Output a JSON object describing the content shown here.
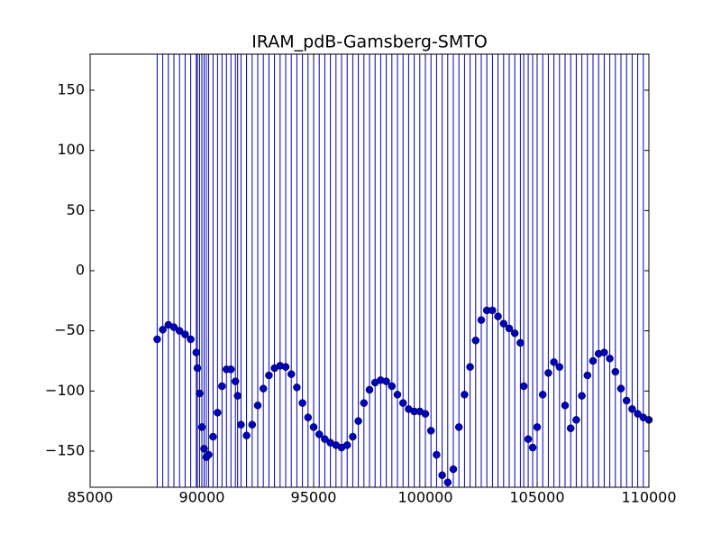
{
  "chart_data": {
    "type": "scatter",
    "title": "IRAM_pdB-Gamsberg-SMTO",
    "x": [
      88000,
      88250,
      88500,
      88750,
      89000,
      89250,
      89500,
      89750,
      89800,
      89900,
      90000,
      90100,
      90200,
      90300,
      90500,
      90700,
      90900,
      91100,
      91300,
      91500,
      91600,
      91750,
      92000,
      92250,
      92500,
      92750,
      93000,
      93250,
      93500,
      93750,
      94000,
      94250,
      94500,
      94750,
      95000,
      95250,
      95500,
      95750,
      96000,
      96250,
      96500,
      96750,
      97000,
      97250,
      97500,
      97750,
      98000,
      98250,
      98500,
      98750,
      99000,
      99250,
      99500,
      99750,
      100000,
      100250,
      100500,
      100750,
      101000,
      101250,
      101500,
      101750,
      102000,
      102250,
      102500,
      102750,
      103000,
      103250,
      103500,
      103750,
      104000,
      104250,
      104400,
      104600,
      104800,
      105000,
      105250,
      105500,
      105750,
      106000,
      106250,
      106500,
      106750,
      107000,
      107250,
      107500,
      107750,
      108000,
      108250,
      108500,
      108750,
      109000,
      109250,
      109500,
      109750,
      110000
    ],
    "values": [
      -57,
      -49,
      -45,
      -47,
      -50,
      -53,
      -57,
      -68,
      -81,
      -102,
      -130,
      -148,
      -155,
      -153,
      -138,
      -118,
      -96,
      -82,
      -82,
      -92,
      -104,
      -128,
      -137,
      -128,
      -112,
      -98,
      -87,
      -81,
      -79,
      -80,
      -86,
      -97,
      -110,
      -122,
      -130,
      -136,
      -140,
      -143,
      -145,
      -147,
      -145,
      -138,
      -125,
      -110,
      -99,
      -93,
      -91,
      -92,
      -96,
      -103,
      -110,
      -115,
      -117,
      -117,
      -119,
      -133,
      -153,
      -170,
      -176,
      -165,
      -130,
      -103,
      -80,
      -58,
      -41,
      -33,
      -33,
      -38,
      -44,
      -48,
      -52,
      -60,
      -96,
      -140,
      -147,
      -130,
      -103,
      -85,
      -76,
      -80,
      -112,
      -131,
      -124,
      -104,
      -87,
      -75,
      -69,
      -68,
      -73,
      -84,
      -98,
      -108,
      -115,
      -119,
      -122,
      -124
    ],
    "color": "#0000bf",
    "xlim": [
      85000,
      110000
    ],
    "xticks": [
      85000,
      90000,
      95000,
      100000,
      105000,
      110000
    ],
    "ylim": [
      -180,
      180
    ],
    "yticks": [
      {
        "value": -150,
        "label": "−150"
      },
      {
        "value": -100,
        "label": "−100"
      },
      {
        "value": -50,
        "label": "−50"
      },
      0,
      50,
      100,
      150
    ]
  }
}
